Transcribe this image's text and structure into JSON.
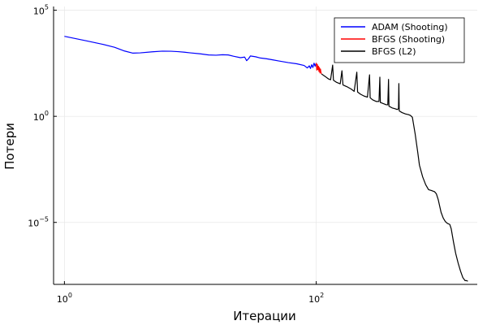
{
  "chart_data": {
    "type": "line",
    "xlabel": "Итерации",
    "ylabel": "Потери",
    "x_scale": "log10",
    "y_scale": "log10",
    "xlim": [
      0.82,
      1900
    ],
    "ylim": [
      1.2e-08,
      150000
    ],
    "grid": true,
    "legend_position": "top-right",
    "x_ticks": [
      {
        "value": 1,
        "base": "10",
        "exp": "0"
      },
      {
        "value": 100,
        "base": "10",
        "exp": "2"
      }
    ],
    "y_ticks": [
      {
        "value": 100000,
        "base": "10",
        "exp": "5"
      },
      {
        "value": 1,
        "base": "10",
        "exp": "0"
      },
      {
        "value": 1e-05,
        "base": "10",
        "exp": "−5"
      }
    ],
    "series": [
      {
        "name": "ADAM (Shooting)",
        "color": "#0000ff",
        "points": [
          [
            1,
            5900
          ],
          [
            1.5,
            3600
          ],
          [
            2,
            2500
          ],
          [
            2.5,
            1800
          ],
          [
            3,
            1200
          ],
          [
            3.5,
            950
          ],
          [
            4,
            980
          ],
          [
            5,
            1100
          ],
          [
            6,
            1180
          ],
          [
            7,
            1170
          ],
          [
            8,
            1120
          ],
          [
            9,
            1050
          ],
          [
            10,
            980
          ],
          [
            12,
            880
          ],
          [
            14,
            780
          ],
          [
            16,
            760
          ],
          [
            18,
            800
          ],
          [
            20,
            780
          ],
          [
            22,
            680
          ],
          [
            25,
            580
          ],
          [
            27,
            620
          ],
          [
            28,
            420
          ],
          [
            29,
            520
          ],
          [
            30,
            700
          ],
          [
            33,
            640
          ],
          [
            36,
            560
          ],
          [
            40,
            520
          ],
          [
            45,
            460
          ],
          [
            50,
            410
          ],
          [
            60,
            340
          ],
          [
            70,
            300
          ],
          [
            80,
            250
          ],
          [
            85,
            190
          ],
          [
            88,
            240
          ],
          [
            90,
            180
          ],
          [
            92,
            270
          ],
          [
            94,
            200
          ],
          [
            96,
            320
          ],
          [
            98,
            230
          ],
          [
            100,
            330
          ]
        ]
      },
      {
        "name": "BFGS (Shooting)",
        "color": "#ff0000",
        "points": [
          [
            100,
            330
          ],
          [
            101,
            150
          ],
          [
            102,
            280
          ],
          [
            103,
            160
          ],
          [
            104,
            230
          ],
          [
            105,
            130
          ],
          [
            106,
            200
          ],
          [
            107,
            110
          ],
          [
            108,
            170
          ],
          [
            109,
            120
          ],
          [
            110,
            100
          ]
        ]
      },
      {
        "name": "BFGS (L2)",
        "color": "#000000",
        "points": [
          [
            110,
            100
          ],
          [
            118,
            75
          ],
          [
            125,
            58
          ],
          [
            130,
            53
          ],
          [
            135,
            260
          ],
          [
            137,
            50
          ],
          [
            145,
            40
          ],
          [
            155,
            34
          ],
          [
            160,
            140
          ],
          [
            163,
            30
          ],
          [
            175,
            25
          ],
          [
            190,
            19
          ],
          [
            200,
            15
          ],
          [
            210,
            120
          ],
          [
            213,
            14
          ],
          [
            225,
            11
          ],
          [
            240,
            9
          ],
          [
            255,
            8
          ],
          [
            265,
            90
          ],
          [
            268,
            7.5
          ],
          [
            280,
            6
          ],
          [
            300,
            5
          ],
          [
            315,
            5
          ],
          [
            320,
            70
          ],
          [
            323,
            4.5
          ],
          [
            340,
            4
          ],
          [
            360,
            3.5
          ],
          [
            370,
            3.5
          ],
          [
            375,
            55
          ],
          [
            378,
            3
          ],
          [
            400,
            2.5
          ],
          [
            420,
            2.3
          ],
          [
            440,
            2.1
          ],
          [
            450,
            2.3
          ],
          [
            453,
            35
          ],
          [
            456,
            1.8
          ],
          [
            480,
            1.5
          ],
          [
            510,
            1.3
          ],
          [
            540,
            1.2
          ],
          [
            560,
            1.1
          ],
          [
            580,
            0.9
          ],
          [
            610,
            0.15
          ],
          [
            640,
            0.02
          ],
          [
            660,
            0.005
          ],
          [
            700,
            0.0014
          ],
          [
            740,
            0.0006
          ],
          [
            780,
            0.00035
          ],
          [
            820,
            0.00032
          ],
          [
            870,
            0.00028
          ],
          [
            900,
            0.00022
          ],
          [
            930,
            0.00012
          ],
          [
            980,
            3e-05
          ],
          [
            1020,
            1.6e-05
          ],
          [
            1060,
            1.1e-05
          ],
          [
            1100,
            9e-06
          ],
          [
            1150,
            8e-06
          ],
          [
            1180,
            5e-06
          ],
          [
            1230,
            1.2e-06
          ],
          [
            1280,
            3.5e-07
          ],
          [
            1340,
            1.2e-07
          ],
          [
            1400,
            5e-08
          ],
          [
            1460,
            2.5e-08
          ],
          [
            1520,
            1.8e-08
          ],
          [
            1560,
            1.8e-08
          ],
          [
            1600,
            1.7e-08
          ]
        ]
      }
    ]
  }
}
